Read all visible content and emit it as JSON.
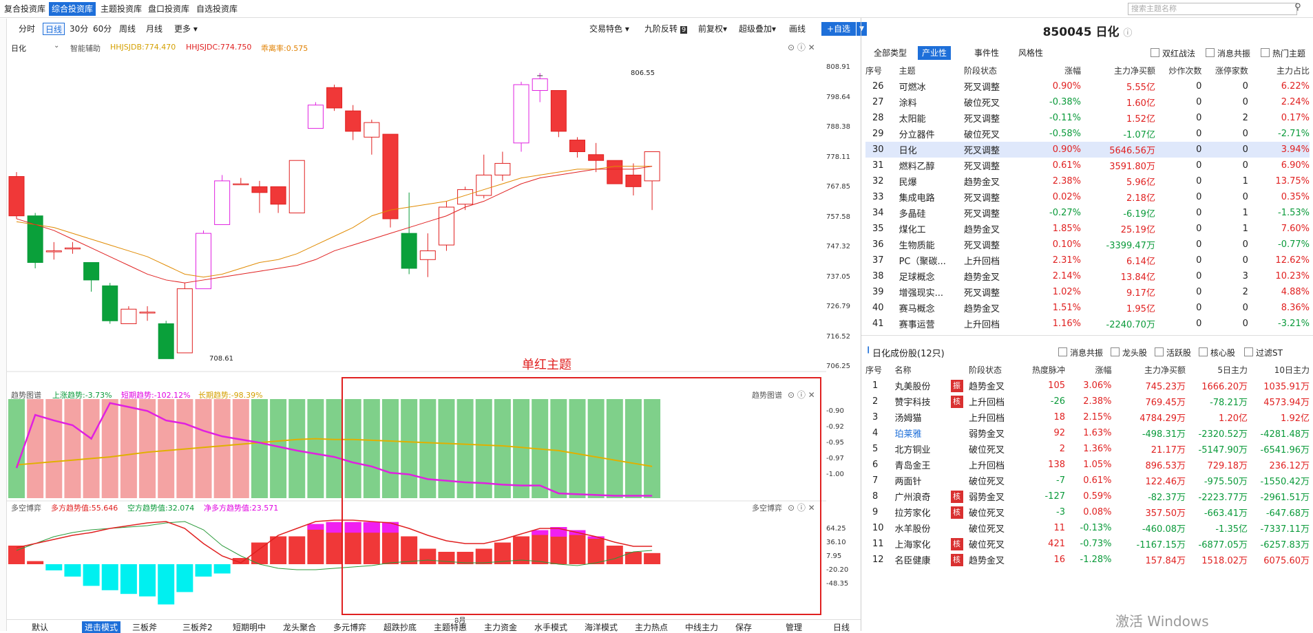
{
  "topbar": {
    "tabs": [
      "复合投资库",
      "综合投资库",
      "主题投资库",
      "盘口投资库",
      "自选投资库"
    ],
    "active": 1,
    "search_placeholder": "搜索主题名称"
  },
  "chartbar": {
    "periods": [
      "分时",
      "日线",
      "30分",
      "60分",
      "周线",
      "月线",
      "更多"
    ],
    "active": 1,
    "right": [
      "交易特色",
      "九阶反转",
      "前复权",
      "超级叠加",
      "画线"
    ],
    "nine_badge": "9",
    "add_label": "+自选"
  },
  "kline": {
    "name": "日化",
    "assist": "智能辅助",
    "hhjsjdb": "HHJSJDB:774.470",
    "hhjsjdc": "HHJSJDC:774.750",
    "xilimu": "乖离率:0.575",
    "high_label": "806.55",
    "low_label": "708.61",
    "axis": [
      "808.91",
      "798.64",
      "788.38",
      "778.11",
      "767.85",
      "757.58",
      "747.32",
      "737.05",
      "726.79",
      "716.52",
      "706.25"
    ],
    "candles": [
      [
        771.5,
        758,
        773,
        757
      ],
      [
        758,
        742,
        759,
        740
      ],
      [
        746,
        746,
        749,
        743
      ],
      [
        747,
        747,
        749,
        745
      ],
      [
        742,
        736,
        742,
        732
      ],
      [
        734,
        722,
        735,
        721
      ],
      [
        721,
        726,
        727,
        721
      ],
      [
        725,
        725,
        727,
        722
      ],
      [
        721,
        709,
        722,
        709
      ],
      [
        711,
        733,
        735,
        711
      ],
      [
        733,
        752,
        753,
        733
      ],
      [
        755,
        770,
        772,
        755
      ],
      [
        769,
        769,
        771,
        769
      ],
      [
        768,
        766,
        770,
        759
      ],
      [
        768,
        762,
        768,
        759
      ],
      [
        759,
        777,
        777,
        759
      ],
      [
        788,
        796,
        797,
        788
      ],
      [
        802,
        795,
        803,
        794
      ],
      [
        794,
        787,
        796,
        784
      ],
      [
        785,
        790,
        791,
        779
      ],
      [
        786,
        757,
        786,
        754
      ],
      [
        752,
        740,
        766,
        738
      ],
      [
        743,
        746,
        752,
        737
      ],
      [
        748,
        761,
        763,
        746
      ],
      [
        762,
        767,
        768,
        760
      ],
      [
        765,
        772,
        779,
        764
      ],
      [
        772,
        776,
        780,
        770
      ],
      [
        783,
        803,
        804,
        780
      ],
      [
        801,
        805,
        807,
        797
      ],
      [
        801,
        787,
        801,
        785
      ],
      [
        784,
        780,
        785,
        778
      ],
      [
        779,
        777,
        783,
        773
      ],
      [
        777,
        769,
        777,
        769
      ],
      [
        772,
        768,
        776,
        765
      ],
      [
        770,
        780,
        780,
        760
      ]
    ],
    "ma_orange": [
      756,
      755,
      754,
      752,
      750,
      748,
      746,
      744,
      741,
      738,
      737,
      738,
      740,
      742,
      743,
      745,
      748,
      751,
      754,
      758,
      760,
      761,
      762,
      763,
      765,
      767,
      769,
      771,
      772,
      773,
      774,
      774,
      775,
      775,
      775
    ],
    "ma_red": [
      757,
      755,
      753,
      750,
      747,
      744,
      741,
      738,
      736,
      735,
      736,
      737,
      738,
      739,
      740,
      741,
      743,
      746,
      748,
      750,
      752,
      754,
      756,
      758,
      761,
      763,
      766,
      769,
      771,
      772,
      773,
      774,
      774,
      774,
      775
    ]
  },
  "trend": {
    "title": "趋势图谱",
    "up": "上涨趋势:-3.73%",
    "short": "短期趋势:-102.12%",
    "long": "长期趋势:-98.39%",
    "label": "趋势图谱",
    "axis": [
      "-0.90",
      "-0.92",
      "-0.95",
      "-0.97",
      "-1.00"
    ],
    "bar_colors": [
      "g",
      "r",
      "r",
      "r",
      "r",
      "r",
      "r",
      "r",
      "r",
      "r",
      "r",
      "r",
      "r",
      "g",
      "g",
      "g",
      "g",
      "g",
      "g",
      "g",
      "g",
      "g",
      "g",
      "g",
      "g",
      "g",
      "g",
      "g",
      "g",
      "g",
      "g",
      "g",
      "g",
      "g",
      "g"
    ],
    "purple": [
      -0.972,
      -0.905,
      -0.912,
      -0.918,
      -0.935,
      -0.89,
      -0.895,
      -0.9,
      -0.912,
      -0.916,
      -0.925,
      -0.932,
      -0.936,
      -0.94,
      -0.945,
      -0.95,
      -0.954,
      -0.958,
      -0.965,
      -0.97,
      -0.978,
      -0.98,
      -0.986,
      -0.988,
      -0.99,
      -0.991,
      -0.993,
      -0.994,
      -0.994,
      -1.004,
      -1.005,
      -1.006,
      -1.007,
      -1.007,
      -1.007
    ],
    "orange": [
      -0.968,
      -0.966,
      -0.964,
      -0.962,
      -0.96,
      -0.958,
      -0.955,
      -0.952,
      -0.95,
      -0.948,
      -0.946,
      -0.944,
      -0.942,
      -0.94,
      -0.938,
      -0.936,
      -0.935,
      -0.936,
      -0.936,
      -0.937,
      -0.938,
      -0.939,
      -0.94,
      -0.941,
      -0.942,
      -0.943,
      -0.944,
      -0.946,
      -0.948,
      -0.95,
      -0.954,
      -0.958,
      -0.962,
      -0.966,
      -0.97
    ]
  },
  "duokong": {
    "title": "多空博弈",
    "duo": "多方趋势值:55.646",
    "kong": "空方趋势值:32.074",
    "net": "净多方趋势值:23.571",
    "label": "多空博弈",
    "axis": [
      "64.25",
      "36.10",
      "7.95",
      "-20.20",
      "-48.35"
    ],
    "bars": [
      30,
      5,
      -10,
      -20,
      -35,
      -42,
      -48,
      -52,
      -65,
      -45,
      -20,
      -15,
      10,
      35,
      45,
      45,
      65,
      68,
      68,
      68,
      68,
      45,
      25,
      20,
      20,
      25,
      35,
      45,
      55,
      60,
      55,
      45,
      30,
      20,
      18
    ],
    "magenta": [
      0,
      0,
      0,
      0,
      0,
      0,
      0,
      0,
      0,
      0,
      0,
      0,
      0,
      0,
      0,
      0,
      12,
      22,
      22,
      22,
      22,
      0,
      0,
      0,
      0,
      0,
      0,
      0,
      10,
      20,
      10,
      5,
      0,
      0,
      0
    ]
  },
  "overlay": {
    "label": "单红主题",
    "month": "8月"
  },
  "bottom": [
    "默认",
    "进击模式",
    "三板斧",
    "三板斧2",
    "短期明中",
    "龙头聚合",
    "多元博弈",
    "超跌抄底",
    "主题特惠",
    "主力资金",
    "水手模式",
    "海洋模式",
    "主力热点",
    "中线主力",
    "保存",
    "管理"
  ],
  "bottom_right": "日线",
  "panel": {
    "title": "850045 日化",
    "tabs": [
      "全部类型",
      "产业性",
      "事件性",
      "风格性"
    ],
    "active": 1,
    "checks": [
      "双红战法",
      "消息共振",
      "热门主题"
    ],
    "cols": [
      "序号",
      "主题",
      "阶段状态",
      "涨幅",
      "主力净买额",
      "炒作次数",
      "涨停家数",
      "主力占比"
    ],
    "rows": [
      [
        "26",
        "可燃冰",
        "死叉调整",
        "0.90%",
        "5.55亿",
        "0",
        "0",
        "6.22%"
      ],
      [
        "27",
        "涂料",
        "破位死叉",
        "-0.38%",
        "1.60亿",
        "0",
        "0",
        "2.24%"
      ],
      [
        "28",
        "太阳能",
        "死叉调整",
        "-0.11%",
        "1.52亿",
        "0",
        "2",
        "0.17%"
      ],
      [
        "29",
        "分立器件",
        "破位死叉",
        "-0.58%",
        "-1.07亿",
        "0",
        "0",
        "-2.71%"
      ],
      [
        "30",
        "日化",
        "死叉调整",
        "0.90%",
        "5646.56万",
        "0",
        "0",
        "3.94%"
      ],
      [
        "31",
        "燃料乙醇",
        "死叉调整",
        "0.61%",
        "3591.80万",
        "0",
        "0",
        "6.90%"
      ],
      [
        "32",
        "民爆",
        "趋势金叉",
        "2.38%",
        "5.96亿",
        "0",
        "1",
        "13.75%"
      ],
      [
        "33",
        "集成电路",
        "死叉调整",
        "0.02%",
        "2.18亿",
        "0",
        "0",
        "0.35%"
      ],
      [
        "34",
        "多晶硅",
        "死叉调整",
        "-0.27%",
        "-6.19亿",
        "0",
        "1",
        "-1.53%"
      ],
      [
        "35",
        "煤化工",
        "趋势金叉",
        "1.85%",
        "25.19亿",
        "0",
        "1",
        "7.60%"
      ],
      [
        "36",
        "生物质能",
        "死叉调整",
        "0.10%",
        "-3399.47万",
        "0",
        "0",
        "-0.77%"
      ],
      [
        "37",
        "PC（聚碳...",
        "上升回档",
        "2.31%",
        "6.14亿",
        "0",
        "0",
        "12.62%"
      ],
      [
        "38",
        "足球概念",
        "趋势金叉",
        "2.14%",
        "13.84亿",
        "0",
        "3",
        "10.23%"
      ],
      [
        "39",
        "增强现实...",
        "死叉调整",
        "1.02%",
        "9.17亿",
        "0",
        "2",
        "4.88%"
      ],
      [
        "40",
        "赛马概念",
        "趋势金叉",
        "1.51%",
        "1.95亿",
        "0",
        "0",
        "8.36%"
      ],
      [
        "41",
        "赛事运营",
        "上升回档",
        "1.16%",
        "-2240.70万",
        "0",
        "0",
        "-3.21%"
      ]
    ],
    "stock_title": "日化成份股(12只)",
    "stock_checks": [
      "消息共振",
      "龙头股",
      "活跃股",
      "核心股",
      "过滤ST"
    ],
    "scols": [
      "序号",
      "名称",
      "阶段状态",
      "热度脉冲",
      "涨幅",
      "主力净买额",
      "5日主力",
      "10日主力"
    ],
    "srows": [
      [
        "1",
        "丸美股份",
        "振",
        "趋势金叉",
        "105",
        "3.06%",
        "745.23万",
        "1666.20万",
        "1035.91万"
      ],
      [
        "2",
        "赞宇科技",
        "核",
        "上升回档",
        "-26",
        "2.38%",
        "769.45万",
        "-78.21万",
        "4573.94万"
      ],
      [
        "3",
        "汤姆猫",
        "",
        "上升回档",
        "18",
        "2.15%",
        "4784.29万",
        "1.20亿",
        "1.92亿"
      ],
      [
        "4",
        "珀莱雅",
        "",
        "弱势金叉",
        "92",
        "1.63%",
        "-498.31万",
        "-2320.52万",
        "-4281.48万"
      ],
      [
        "5",
        "北方铜业",
        "",
        "破位死叉",
        "2",
        "1.36%",
        "21.17万",
        "-5147.90万",
        "-6541.96万"
      ],
      [
        "6",
        "青岛金王",
        "",
        "上升回档",
        "138",
        "1.05%",
        "896.53万",
        "729.18万",
        "236.12万"
      ],
      [
        "7",
        "两面针",
        "",
        "破位死叉",
        "-7",
        "0.61%",
        "122.46万",
        "-975.50万",
        "-1550.42万"
      ],
      [
        "8",
        "广州浪奇",
        "核",
        "弱势金叉",
        "-127",
        "0.59%",
        "-82.37万",
        "-2223.77万",
        "-2961.51万"
      ],
      [
        "9",
        "拉芳家化",
        "核",
        "破位死叉",
        "-3",
        "0.08%",
        "357.50万",
        "-663.41万",
        "-647.68万"
      ],
      [
        "10",
        "水羊股份",
        "",
        "破位死叉",
        "11",
        "-0.13%",
        "-460.08万",
        "-1.35亿",
        "-7337.11万"
      ],
      [
        "11",
        "上海家化",
        "核",
        "破位死叉",
        "421",
        "-0.73%",
        "-1167.15万",
        "-6877.05万",
        "-6257.83万"
      ],
      [
        "12",
        "名臣健康",
        "核",
        "趋势金叉",
        "16",
        "-1.28%",
        "157.84万",
        "1518.02万",
        "6075.60万"
      ]
    ]
  },
  "watermark": "激活 Windows"
}
